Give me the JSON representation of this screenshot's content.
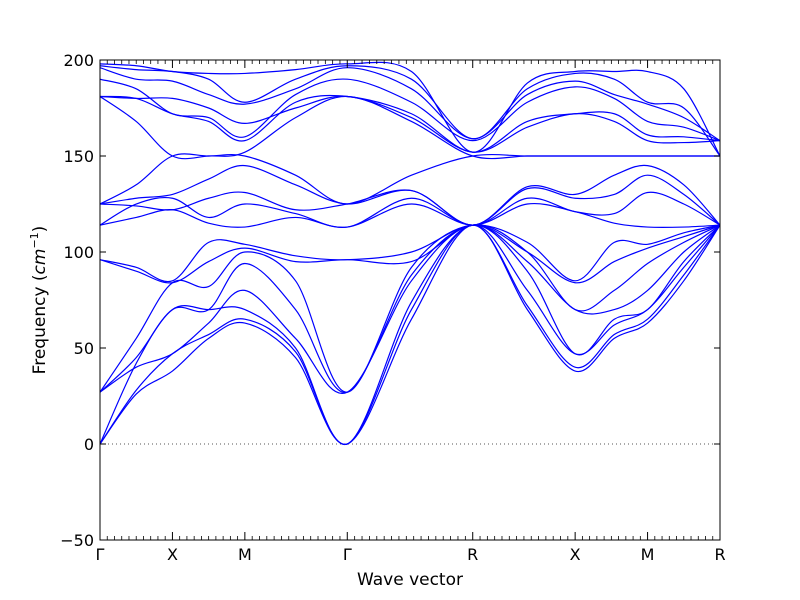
{
  "chart_data": {
    "type": "line",
    "title": "",
    "xlabel": "Wave vector",
    "ylabel_main": "Frequency (",
    "ylabel_unit": "cm",
    "ylabel_exp": "−1",
    "ylabel_close": ")",
    "ylim": [
      -50,
      200
    ],
    "yticks": [
      -50,
      0,
      50,
      100,
      150,
      200
    ],
    "ytick_labels": [
      "−50",
      "0",
      "50",
      "100",
      "150",
      "200"
    ],
    "grid": false,
    "zero_line": true,
    "line_color": "#0000ff",
    "zero_line_color": "#555555",
    "high_symmetry_points": [
      {
        "label": "Γ",
        "x": 0.0
      },
      {
        "label": "X",
        "x": 0.5
      },
      {
        "label": "M",
        "x": 1.0
      },
      {
        "label": "Γ",
        "x": 1.707
      },
      {
        "label": "R",
        "x": 2.573
      },
      {
        "label": "X",
        "x": 3.28
      },
      {
        "label": "M",
        "x": 3.78
      },
      {
        "label": "R",
        "x": 4.28
      }
    ],
    "xlim": [
      0,
      4.28
    ],
    "series": [
      {
        "values": [
          [
            0,
            0
          ],
          [
            0.25,
            26
          ],
          [
            0.5,
            38
          ],
          [
            0.75,
            55
          ],
          [
            1.0,
            63
          ],
          [
            1.35,
            45
          ],
          [
            1.707,
            0
          ],
          [
            2.15,
            65
          ],
          [
            2.573,
            114
          ],
          [
            2.95,
            70
          ],
          [
            3.28,
            38
          ],
          [
            3.55,
            55
          ],
          [
            3.78,
            63
          ],
          [
            4.03,
            85
          ],
          [
            4.28,
            114
          ]
        ]
      },
      {
        "values": [
          [
            0,
            0
          ],
          [
            0.25,
            28
          ],
          [
            0.5,
            47
          ],
          [
            0.75,
            57
          ],
          [
            1.0,
            65
          ],
          [
            1.35,
            48
          ],
          [
            1.707,
            0
          ],
          [
            2.15,
            70
          ],
          [
            2.573,
            114
          ],
          [
            2.95,
            72
          ],
          [
            3.28,
            40
          ],
          [
            3.55,
            57
          ],
          [
            3.78,
            65
          ],
          [
            4.03,
            88
          ],
          [
            4.28,
            114
          ]
        ]
      },
      {
        "values": [
          [
            0,
            0
          ],
          [
            0.25,
            42
          ],
          [
            0.5,
            70
          ],
          [
            0.75,
            70
          ],
          [
            1.0,
            70
          ],
          [
            1.35,
            50
          ],
          [
            1.707,
            0
          ],
          [
            2.15,
            74
          ],
          [
            2.573,
            114
          ],
          [
            2.95,
            80
          ],
          [
            3.28,
            47
          ],
          [
            3.55,
            62
          ],
          [
            3.78,
            70
          ],
          [
            4.03,
            92
          ],
          [
            4.28,
            114
          ]
        ]
      },
      {
        "values": [
          [
            0,
            27
          ],
          [
            0.25,
            40
          ],
          [
            0.5,
            47
          ],
          [
            0.75,
            63
          ],
          [
            1.0,
            80
          ],
          [
            1.35,
            55
          ],
          [
            1.707,
            27
          ],
          [
            2.15,
            85
          ],
          [
            2.573,
            114
          ],
          [
            2.95,
            90
          ],
          [
            3.28,
            47
          ],
          [
            3.55,
            65
          ],
          [
            3.78,
            70
          ],
          [
            4.03,
            95
          ],
          [
            4.28,
            114
          ]
        ]
      },
      {
        "values": [
          [
            0,
            27
          ],
          [
            0.25,
            45
          ],
          [
            0.5,
            70
          ],
          [
            0.75,
            70
          ],
          [
            1.0,
            94
          ],
          [
            1.35,
            70
          ],
          [
            1.707,
            27
          ],
          [
            2.15,
            88
          ],
          [
            2.573,
            114
          ],
          [
            2.95,
            95
          ],
          [
            3.28,
            70
          ],
          [
            3.55,
            70
          ],
          [
            3.78,
            80
          ],
          [
            4.03,
            100
          ],
          [
            4.28,
            114
          ]
        ]
      },
      {
        "values": [
          [
            0,
            27
          ],
          [
            0.25,
            55
          ],
          [
            0.5,
            84
          ],
          [
            0.75,
            82
          ],
          [
            1.0,
            100
          ],
          [
            1.35,
            85
          ],
          [
            1.707,
            27
          ],
          [
            2.15,
            92
          ],
          [
            2.573,
            114
          ],
          [
            2.95,
            100
          ],
          [
            3.28,
            70
          ],
          [
            3.55,
            80
          ],
          [
            3.78,
            94
          ],
          [
            4.03,
            105
          ],
          [
            4.28,
            114
          ]
        ]
      },
      {
        "values": [
          [
            0,
            96
          ],
          [
            0.25,
            90
          ],
          [
            0.5,
            84
          ],
          [
            0.75,
            95
          ],
          [
            1.0,
            102
          ],
          [
            1.35,
            95
          ],
          [
            1.707,
            96
          ],
          [
            2.15,
            95
          ],
          [
            2.573,
            114
          ],
          [
            2.95,
            100
          ],
          [
            3.28,
            84
          ],
          [
            3.55,
            95
          ],
          [
            3.78,
            102
          ],
          [
            4.03,
            108
          ],
          [
            4.28,
            114
          ]
        ]
      },
      {
        "values": [
          [
            0,
            96
          ],
          [
            0.25,
            92
          ],
          [
            0.5,
            85
          ],
          [
            0.75,
            105
          ],
          [
            1.0,
            104
          ],
          [
            1.35,
            98
          ],
          [
            1.707,
            96
          ],
          [
            2.15,
            100
          ],
          [
            2.573,
            114
          ],
          [
            2.95,
            105
          ],
          [
            3.28,
            85
          ],
          [
            3.55,
            105
          ],
          [
            3.78,
            104
          ],
          [
            4.03,
            110
          ],
          [
            4.28,
            114
          ]
        ]
      },
      {
        "values": [
          [
            0,
            114
          ],
          [
            0.25,
            118
          ],
          [
            0.5,
            122
          ],
          [
            0.75,
            115
          ],
          [
            1.0,
            113
          ],
          [
            1.35,
            118
          ],
          [
            1.707,
            113
          ],
          [
            2.15,
            125
          ],
          [
            2.573,
            114
          ],
          [
            2.95,
            125
          ],
          [
            3.28,
            121
          ],
          [
            3.55,
            115
          ],
          [
            3.78,
            113
          ],
          [
            4.03,
            113
          ],
          [
            4.28,
            114
          ]
        ]
      },
      {
        "values": [
          [
            0,
            114
          ],
          [
            0.25,
            125
          ],
          [
            0.5,
            128
          ],
          [
            0.75,
            118
          ],
          [
            1.0,
            125
          ],
          [
            1.35,
            120
          ],
          [
            1.707,
            113
          ],
          [
            2.15,
            128
          ],
          [
            2.573,
            114
          ],
          [
            2.95,
            128
          ],
          [
            3.28,
            121
          ],
          [
            3.55,
            120
          ],
          [
            3.78,
            131
          ],
          [
            4.03,
            125
          ],
          [
            4.28,
            114
          ]
        ]
      },
      {
        "values": [
          [
            0,
            125
          ],
          [
            0.25,
            124
          ],
          [
            0.5,
            122
          ],
          [
            0.75,
            128
          ],
          [
            1.0,
            131
          ],
          [
            1.35,
            122
          ],
          [
            1.707,
            125
          ],
          [
            2.15,
            132
          ],
          [
            2.573,
            114
          ],
          [
            2.95,
            133
          ],
          [
            3.28,
            128
          ],
          [
            3.55,
            130
          ],
          [
            3.78,
            140
          ],
          [
            4.03,
            130
          ],
          [
            4.28,
            114
          ]
        ]
      },
      {
        "values": [
          [
            0,
            125
          ],
          [
            0.25,
            128
          ],
          [
            0.5,
            130
          ],
          [
            0.75,
            138
          ],
          [
            1.0,
            145
          ],
          [
            1.35,
            135
          ],
          [
            1.707,
            125
          ],
          [
            2.15,
            132
          ],
          [
            2.573,
            114
          ],
          [
            2.95,
            134
          ],
          [
            3.28,
            130
          ],
          [
            3.55,
            140
          ],
          [
            3.78,
            145
          ],
          [
            4.03,
            135
          ],
          [
            4.28,
            114
          ]
        ]
      },
      {
        "values": [
          [
            0,
            125
          ],
          [
            0.25,
            135
          ],
          [
            0.5,
            150
          ],
          [
            0.75,
            150
          ],
          [
            1.0,
            150
          ],
          [
            1.35,
            140
          ],
          [
            1.707,
            125
          ],
          [
            2.15,
            140
          ],
          [
            2.573,
            150
          ],
          [
            2.95,
            150
          ],
          [
            3.28,
            150
          ],
          [
            3.55,
            150
          ],
          [
            3.78,
            150
          ],
          [
            4.03,
            150
          ],
          [
            4.28,
            150
          ]
        ]
      },
      {
        "values": [
          [
            0,
            181
          ],
          [
            0.25,
            168
          ],
          [
            0.5,
            150
          ],
          [
            0.75,
            150
          ],
          [
            1.0,
            152
          ],
          [
            1.35,
            170
          ],
          [
            1.707,
            181
          ],
          [
            2.15,
            168
          ],
          [
            2.573,
            150
          ],
          [
            2.95,
            150
          ],
          [
            3.28,
            150
          ],
          [
            3.55,
            150
          ],
          [
            3.78,
            150
          ],
          [
            4.03,
            150
          ],
          [
            4.28,
            150
          ]
        ]
      },
      {
        "values": [
          [
            0,
            181
          ],
          [
            0.25,
            180
          ],
          [
            0.5,
            180
          ],
          [
            0.75,
            175
          ],
          [
            1.0,
            167
          ],
          [
            1.35,
            175
          ],
          [
            1.707,
            181
          ],
          [
            2.15,
            170
          ],
          [
            2.573,
            152
          ],
          [
            2.95,
            165
          ],
          [
            3.28,
            172
          ],
          [
            3.55,
            168
          ],
          [
            3.78,
            158
          ],
          [
            4.03,
            157
          ],
          [
            4.28,
            158
          ]
        ]
      },
      {
        "values": [
          [
            0,
            181
          ],
          [
            0.25,
            180
          ],
          [
            0.5,
            172
          ],
          [
            0.75,
            168
          ],
          [
            1.0,
            158
          ],
          [
            1.35,
            178
          ],
          [
            1.707,
            181
          ],
          [
            2.15,
            172
          ],
          [
            2.573,
            152
          ],
          [
            2.95,
            168
          ],
          [
            3.28,
            172
          ],
          [
            3.55,
            172
          ],
          [
            3.78,
            161
          ],
          [
            4.03,
            160
          ],
          [
            4.28,
            158
          ]
        ]
      },
      {
        "values": [
          [
            0,
            190
          ],
          [
            0.25,
            185
          ],
          [
            0.5,
            172
          ],
          [
            0.75,
            170
          ],
          [
            1.0,
            160
          ],
          [
            1.35,
            182
          ],
          [
            1.707,
            190
          ],
          [
            2.15,
            178
          ],
          [
            2.573,
            158
          ],
          [
            2.95,
            178
          ],
          [
            3.28,
            186
          ],
          [
            3.55,
            180
          ],
          [
            3.78,
            168
          ],
          [
            4.03,
            165
          ],
          [
            4.28,
            158
          ]
        ]
      },
      {
        "values": [
          [
            0,
            196
          ],
          [
            0.25,
            190
          ],
          [
            0.5,
            189
          ],
          [
            0.75,
            182
          ],
          [
            1.0,
            177
          ],
          [
            1.35,
            185
          ],
          [
            1.707,
            196
          ],
          [
            2.15,
            185
          ],
          [
            2.573,
            159
          ],
          [
            2.95,
            182
          ],
          [
            3.28,
            189
          ],
          [
            3.55,
            182
          ],
          [
            3.78,
            177
          ],
          [
            4.03,
            170
          ],
          [
            4.28,
            158
          ]
        ]
      },
      {
        "values": [
          [
            0,
            197
          ],
          [
            0.25,
            195
          ],
          [
            0.5,
            194
          ],
          [
            0.75,
            190
          ],
          [
            1.0,
            178
          ],
          [
            1.35,
            190
          ],
          [
            1.707,
            197
          ],
          [
            2.15,
            190
          ],
          [
            2.573,
            159
          ],
          [
            2.95,
            185
          ],
          [
            3.28,
            193
          ],
          [
            3.55,
            190
          ],
          [
            3.78,
            178
          ],
          [
            4.03,
            175
          ],
          [
            4.28,
            150
          ]
        ]
      },
      {
        "values": [
          [
            0,
            198
          ],
          [
            0.25,
            197
          ],
          [
            0.5,
            194
          ],
          [
            0.75,
            193
          ],
          [
            1.0,
            193
          ],
          [
            1.35,
            195
          ],
          [
            1.707,
            198
          ],
          [
            2.15,
            194
          ],
          [
            2.573,
            152
          ],
          [
            2.95,
            188
          ],
          [
            3.28,
            194
          ],
          [
            3.55,
            194
          ],
          [
            3.78,
            194
          ],
          [
            4.03,
            185
          ],
          [
            4.28,
            150
          ]
        ]
      }
    ]
  }
}
